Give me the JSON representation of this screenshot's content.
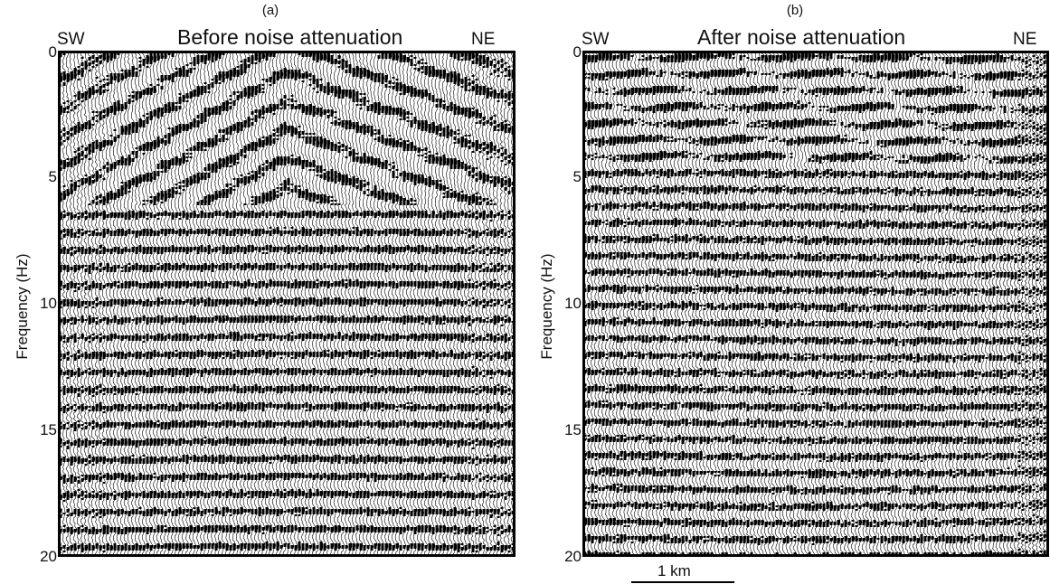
{
  "panels": [
    {
      "letter": "(a)",
      "title": "Before noise attenuation",
      "left_dir": "SW",
      "right_dir": "NE",
      "ylabel": "Frequency (Hz)",
      "yticks": [
        "0",
        "5",
        "10",
        "15",
        "20"
      ]
    },
    {
      "letter": "(b)",
      "title": "After noise attenuation",
      "left_dir": "SW",
      "right_dir": "NE",
      "ylabel": "Frequency (Hz)",
      "yticks": [
        "0",
        "5",
        "10",
        "15",
        "20"
      ]
    }
  ],
  "scale_bar": {
    "label": "1 km"
  },
  "colors": {
    "ink": "#000000",
    "paper": "#ffffff"
  }
}
